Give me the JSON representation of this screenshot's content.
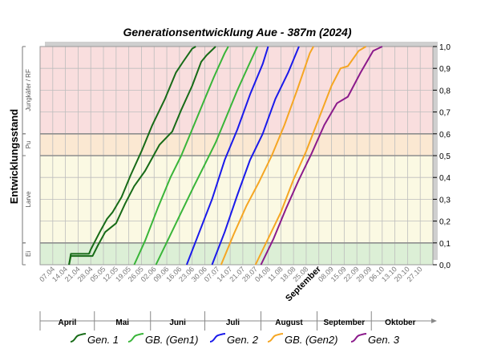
{
  "chart_data": {
    "type": "line",
    "title": "Generationsentwicklung Aue - 387m (2024)",
    "ylabel": "Entwicklungsstand",
    "ylim": [
      0,
      1
    ],
    "yticks": [
      "0,0",
      "0,1",
      "0,2",
      "0,3",
      "0,4",
      "0,5",
      "0,6",
      "0,7",
      "0,8",
      "0,9",
      "1,0"
    ],
    "xlim": [
      "2024-03-31",
      "2024-11-03"
    ],
    "x_tick_labels": [
      {
        "date": "2024-04-07",
        "label": "07.04"
      },
      {
        "date": "2024-04-14",
        "label": "14.04"
      },
      {
        "date": "2024-04-21",
        "label": "21.04"
      },
      {
        "date": "2024-04-28",
        "label": "28.04"
      },
      {
        "date": "2024-05-05",
        "label": "05.05"
      },
      {
        "date": "2024-05-12",
        "label": "12.05"
      },
      {
        "date": "2024-05-19",
        "label": "19.05"
      },
      {
        "date": "2024-05-26",
        "label": "26.05"
      },
      {
        "date": "2024-06-02",
        "label": "02.06"
      },
      {
        "date": "2024-06-09",
        "label": "09.06"
      },
      {
        "date": "2024-06-16",
        "label": "16.06"
      },
      {
        "date": "2024-06-23",
        "label": "23.06"
      },
      {
        "date": "2024-06-30",
        "label": "30.06"
      },
      {
        "date": "2024-07-07",
        "label": "07.07"
      },
      {
        "date": "2024-07-14",
        "label": "14.07"
      },
      {
        "date": "2024-07-21",
        "label": "21.07"
      },
      {
        "date": "2024-07-28",
        "label": "28.07"
      },
      {
        "date": "2024-08-04",
        "label": "04.08"
      },
      {
        "date": "2024-08-11",
        "label": "11.08"
      },
      {
        "date": "2024-08-18",
        "label": "18.08"
      },
      {
        "date": "2024-08-25",
        "label": "25.08"
      },
      {
        "date": "2024-09-01",
        "label": "September"
      },
      {
        "date": "2024-09-08",
        "label": "08.09"
      },
      {
        "date": "2024-09-15",
        "label": "15.09"
      },
      {
        "date": "2024-09-22",
        "label": "22.09"
      },
      {
        "date": "2024-09-29",
        "label": "29.09"
      },
      {
        "date": "2024-10-06",
        "label": "06.10"
      },
      {
        "date": "2024-10-13",
        "label": "13.10"
      },
      {
        "date": "2024-10-20",
        "label": "20.10"
      },
      {
        "date": "2024-10-27",
        "label": "27.10"
      }
    ],
    "months": [
      {
        "label": "April",
        "start": "2024-03-31",
        "end": "2024-04-30"
      },
      {
        "label": "Mai",
        "start": "2024-04-30",
        "end": "2024-05-31"
      },
      {
        "label": "Juni",
        "start": "2024-05-31",
        "end": "2024-06-30"
      },
      {
        "label": "Juli",
        "start": "2024-06-30",
        "end": "2024-07-31"
      },
      {
        "label": "August",
        "start": "2024-07-31",
        "end": "2024-08-31"
      },
      {
        "label": "September",
        "start": "2024-08-31",
        "end": "2024-09-30"
      },
      {
        "label": "Oktober",
        "start": "2024-09-30",
        "end": "2024-11-01"
      }
    ],
    "stages": [
      {
        "label": "Ei",
        "from": 0.0,
        "to": 0.1,
        "color": "#dcefd6"
      },
      {
        "label": "Larve",
        "from": 0.1,
        "to": 0.5,
        "color": "#fbf9e3"
      },
      {
        "label": "Pu",
        "from": 0.5,
        "to": 0.6,
        "color": "#fbe8d2"
      },
      {
        "label": "Jungkäfer / RF",
        "from": 0.6,
        "to": 1.0,
        "color": "#f9dede"
      }
    ],
    "stage_lines": [
      0.1,
      0.5,
      0.6
    ],
    "grid": true,
    "legend_position": "bottom",
    "series": [
      {
        "name": "Gen. 1",
        "color": "#176b17",
        "points": [
          [
            "2024-04-16",
            0.0
          ],
          [
            "2024-04-17",
            0.05
          ],
          [
            "2024-04-27",
            0.05
          ],
          [
            "2024-04-28",
            0.07
          ],
          [
            "2024-05-03",
            0.15
          ],
          [
            "2024-05-07",
            0.21
          ],
          [
            "2024-05-10",
            0.24
          ],
          [
            "2024-05-15",
            0.31
          ],
          [
            "2024-05-20",
            0.41
          ],
          [
            "2024-05-26",
            0.52
          ],
          [
            "2024-06-01",
            0.64
          ],
          [
            "2024-06-08",
            0.76
          ],
          [
            "2024-06-14",
            0.88
          ],
          [
            "2024-06-18",
            0.93
          ],
          [
            "2024-06-23",
            0.99
          ],
          [
            "2024-06-25",
            1.0
          ]
        ]
      },
      {
        "name": "Gen. 1",
        "color": "#176b17",
        "points": [
          [
            "2024-04-16",
            0.0
          ],
          [
            "2024-04-17",
            0.04
          ],
          [
            "2024-04-29",
            0.04
          ],
          [
            "2024-05-02",
            0.09
          ],
          [
            "2024-05-06",
            0.15
          ],
          [
            "2024-05-12",
            0.19
          ],
          [
            "2024-05-17",
            0.28
          ],
          [
            "2024-05-22",
            0.36
          ],
          [
            "2024-05-28",
            0.43
          ],
          [
            "2024-06-05",
            0.55
          ],
          [
            "2024-06-12",
            0.61
          ],
          [
            "2024-06-17",
            0.71
          ],
          [
            "2024-06-23",
            0.82
          ],
          [
            "2024-06-28",
            0.93
          ],
          [
            "2024-07-01",
            0.96
          ],
          [
            "2024-07-06",
            1.0
          ]
        ]
      },
      {
        "name": "GB. (Gen1)",
        "color": "#39b539",
        "points": [
          [
            "2024-05-22",
            0.0
          ],
          [
            "2024-05-28",
            0.11
          ],
          [
            "2024-06-04",
            0.26
          ],
          [
            "2024-06-11",
            0.4
          ],
          [
            "2024-06-17",
            0.5
          ],
          [
            "2024-06-23",
            0.62
          ],
          [
            "2024-06-29",
            0.74
          ],
          [
            "2024-07-05",
            0.86
          ],
          [
            "2024-07-11",
            0.97
          ],
          [
            "2024-07-13",
            1.0
          ]
        ]
      },
      {
        "name": "GB. (Gen1)",
        "color": "#39b539",
        "points": [
          [
            "2024-06-03",
            0.0
          ],
          [
            "2024-06-10",
            0.12
          ],
          [
            "2024-06-17",
            0.24
          ],
          [
            "2024-06-24",
            0.36
          ],
          [
            "2024-06-30",
            0.46
          ],
          [
            "2024-07-06",
            0.56
          ],
          [
            "2024-07-12",
            0.68
          ],
          [
            "2024-07-18",
            0.8
          ],
          [
            "2024-07-24",
            0.91
          ],
          [
            "2024-07-29",
            1.0
          ]
        ]
      },
      {
        "name": "Gen. 2",
        "color": "#1a1aeb",
        "points": [
          [
            "2024-06-20",
            0.0
          ],
          [
            "2024-06-27",
            0.15
          ],
          [
            "2024-07-04",
            0.3
          ],
          [
            "2024-07-11",
            0.48
          ],
          [
            "2024-07-18",
            0.62
          ],
          [
            "2024-07-25",
            0.78
          ],
          [
            "2024-08-01",
            0.92
          ],
          [
            "2024-08-04",
            1.0
          ]
        ]
      },
      {
        "name": "Gen. 2",
        "color": "#1a1aeb",
        "points": [
          [
            "2024-07-04",
            0.0
          ],
          [
            "2024-07-11",
            0.15
          ],
          [
            "2024-07-18",
            0.32
          ],
          [
            "2024-07-25",
            0.48
          ],
          [
            "2024-08-01",
            0.6
          ],
          [
            "2024-08-08",
            0.76
          ],
          [
            "2024-08-15",
            0.88
          ],
          [
            "2024-08-21",
            1.0
          ]
        ]
      },
      {
        "name": "GB. (Gen2)",
        "color": "#f5a623",
        "points": [
          [
            "2024-07-09",
            0.0
          ],
          [
            "2024-07-16",
            0.14
          ],
          [
            "2024-07-23",
            0.27
          ],
          [
            "2024-07-30",
            0.38
          ],
          [
            "2024-08-06",
            0.5
          ],
          [
            "2024-08-13",
            0.64
          ],
          [
            "2024-08-20",
            0.8
          ],
          [
            "2024-08-27",
            0.97
          ],
          [
            "2024-08-29",
            1.0
          ]
        ]
      },
      {
        "name": "GB. (Gen2)",
        "color": "#f5a623",
        "points": [
          [
            "2024-07-28",
            0.0
          ],
          [
            "2024-08-04",
            0.12
          ],
          [
            "2024-08-11",
            0.24
          ],
          [
            "2024-08-18",
            0.39
          ],
          [
            "2024-08-25",
            0.52
          ],
          [
            "2024-09-01",
            0.67
          ],
          [
            "2024-09-08",
            0.82
          ],
          [
            "2024-09-13",
            0.9
          ],
          [
            "2024-09-17",
            0.91
          ],
          [
            "2024-09-23",
            0.98
          ],
          [
            "2024-09-27",
            1.0
          ]
        ]
      },
      {
        "name": "Gen. 3",
        "color": "#8b1a8b",
        "points": [
          [
            "2024-07-31",
            0.0
          ],
          [
            "2024-08-07",
            0.12
          ],
          [
            "2024-08-14",
            0.26
          ],
          [
            "2024-08-21",
            0.39
          ],
          [
            "2024-08-28",
            0.51
          ],
          [
            "2024-09-04",
            0.64
          ],
          [
            "2024-09-11",
            0.74
          ],
          [
            "2024-09-17",
            0.77
          ],
          [
            "2024-09-24",
            0.88
          ],
          [
            "2024-10-01",
            0.98
          ],
          [
            "2024-10-06",
            1.0
          ]
        ]
      }
    ],
    "legend": [
      {
        "label": "Gen. 1",
        "color": "#176b17"
      },
      {
        "label": "GB. (Gen1)",
        "color": "#39b539"
      },
      {
        "label": "Gen. 2",
        "color": "#1a1aeb"
      },
      {
        "label": "GB. (Gen2)",
        "color": "#f5a623"
      },
      {
        "label": "Gen. 3",
        "color": "#8b1a8b"
      }
    ]
  }
}
